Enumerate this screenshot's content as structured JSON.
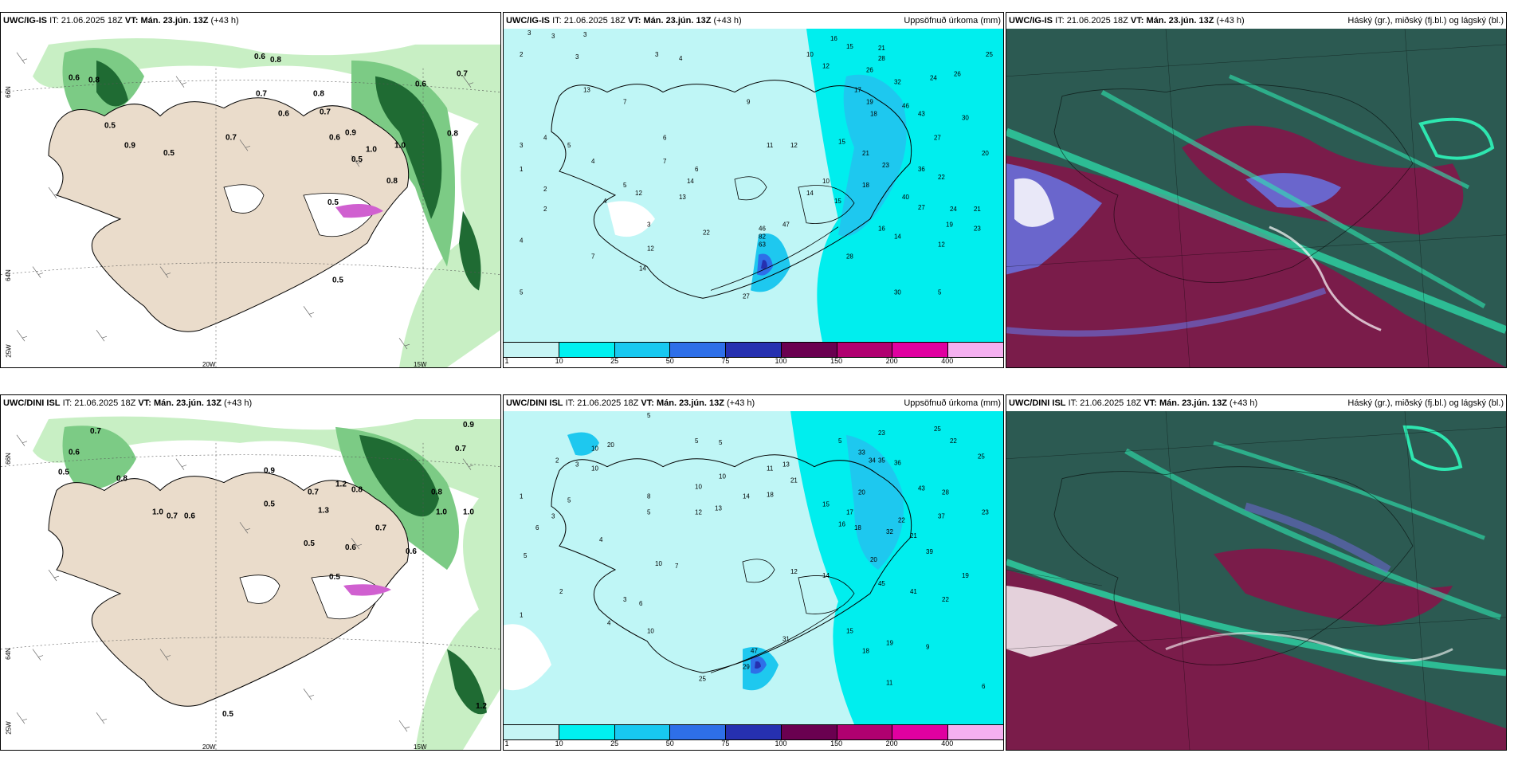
{
  "panels": [
    {
      "header_model": "UWC/IG-IS",
      "header_it_label": "IT:",
      "header_it": "21.06.2025 18Z",
      "header_vt_label": "VT:",
      "header_vt": "Mán. 23.jún. 13Z",
      "header_lead": "(+43 h)",
      "header_right": "",
      "labels": [
        "0.6",
        "0.8",
        "0.6",
        "0.8",
        "0.5",
        "0.7",
        "0.5",
        "0.9",
        "0.7",
        "0.6",
        "0.8",
        "0.7",
        "0.6",
        "0.5",
        "0.9",
        "1.0",
        "0.8",
        "0.5",
        "0.6",
        "0.7",
        "0.8",
        "1.0",
        "0.5"
      ],
      "axis": {
        "lat1": "66N",
        "lat2": "64N",
        "lon1": "20W",
        "lon2": "15W",
        "lon0": "25W"
      }
    },
    {
      "header_model": "UWC/IG-IS",
      "header_it_label": "IT:",
      "header_it": "21.06.2025 18Z",
      "header_vt_label": "VT:",
      "header_vt": "Mán. 23.jún. 13Z",
      "header_lead": "(+43 h)",
      "header_right": "Uppsöfnuð úrkoma (mm)",
      "numbers": [
        "3",
        "3",
        "3",
        "16",
        "15",
        "21",
        "25",
        "2",
        "3",
        "3",
        "4",
        "10",
        "12",
        "26",
        "28",
        "32",
        "24",
        "26",
        "13",
        "7",
        "9",
        "17",
        "19",
        "18",
        "46",
        "43",
        "30",
        "4",
        "5",
        "6",
        "11",
        "12",
        "15",
        "21",
        "27",
        "20",
        "3",
        "4",
        "7",
        "6",
        "14",
        "13",
        "10",
        "23",
        "36",
        "22",
        "1",
        "2",
        "5",
        "12",
        "14",
        "15",
        "18",
        "40",
        "27",
        "24",
        "2",
        "4",
        "3",
        "22",
        "46",
        "47",
        "21",
        "19",
        "23",
        "4",
        "7",
        "12",
        "63",
        "82",
        "16",
        "14",
        "12",
        "5",
        "14",
        "27",
        "28",
        "30",
        "5"
      ],
      "colorbar": [
        "1",
        "10",
        "25",
        "50",
        "75",
        "100",
        "150",
        "200",
        "400"
      ]
    },
    {
      "header_model": "UWC/IG-IS",
      "header_it_label": "IT:",
      "header_it": "21.06.2025 18Z",
      "header_vt_label": "VT:",
      "header_vt": "Mán. 23.jún. 13Z",
      "header_lead": "(+43 h)",
      "header_right": "Háský (gr.), miðský (fj.bl.) og lágský (bl.)"
    },
    {
      "header_model": "UWC/DINI ISL",
      "header_it_label": "IT:",
      "header_it": "21.06.2025 18Z",
      "header_vt_label": "VT:",
      "header_vt": "Mán. 23.jún. 13Z",
      "header_lead": "(+43 h)",
      "header_right": "",
      "labels": [
        "0.7",
        "0.6",
        "0.5",
        "0.8",
        "1.0",
        "0.7",
        "0.6",
        "0.9",
        "0.5",
        "0.7",
        "1.2",
        "1.3",
        "0.8",
        "0.5",
        "1.0",
        "0.6",
        "0.7",
        "0.5",
        "0.8",
        "0.7",
        "0.6",
        "1.0",
        "0.9",
        "0.5",
        "1.2"
      ],
      "axis": {
        "lat1": "66N",
        "lat2": "64N",
        "lon1": "20W",
        "lon2": "15W",
        "lon0": "25W"
      }
    },
    {
      "header_model": "UWC/DINI ISL",
      "header_it_label": "IT:",
      "header_it": "21.06.2025 18Z",
      "header_vt_label": "VT:",
      "header_vt": "Mán. 23.jún. 13Z",
      "header_lead": "(+43 h)",
      "header_right": "Uppsöfnuð úrkoma (mm)",
      "numbers": [
        "5",
        "5",
        "10",
        "20",
        "5",
        "5",
        "23",
        "25",
        "22",
        "2",
        "3",
        "10",
        "10",
        "11",
        "13",
        "21",
        "33",
        "34",
        "35",
        "36",
        "25",
        "5",
        "8",
        "10",
        "14",
        "18",
        "15",
        "20",
        "43",
        "28",
        "1",
        "3",
        "5",
        "12",
        "13",
        "17",
        "22",
        "37",
        "23",
        "6",
        "4",
        "10",
        "7",
        "21",
        "32",
        "16",
        "18",
        "20",
        "39",
        "5",
        "2",
        "3",
        "6",
        "12",
        "14",
        "19",
        "45",
        "41",
        "22",
        "1",
        "4",
        "10",
        "31",
        "47",
        "18",
        "15",
        "19",
        "9",
        "29",
        "25",
        "11",
        "6"
      ],
      "colorbar": [
        "1",
        "10",
        "25",
        "50",
        "75",
        "100",
        "150",
        "200",
        "400"
      ]
    },
    {
      "header_model": "UWC/DINI ISL",
      "header_it_label": "IT:",
      "header_it": "21.06.2025 18Z",
      "header_vt_label": "VT:",
      "header_vt": "Mán. 23.jún. 13Z",
      "header_lead": "(+43 h)",
      "header_right": "Háský (gr.), miðský (fj.bl.) og lágský (bl.)"
    }
  ],
  "colors": {
    "land": "#eadccb",
    "green_light": "#c8efc4",
    "green_mid": "#7ccb85",
    "green_dark": "#1f6b33",
    "precip_light": "#bff6f6",
    "precip_cyan": "#00eeee",
    "precip_blue": "#1ec8ef",
    "cloud_bg": "#2c5a52",
    "cloud_high": "#2ee6b0",
    "cloud_mid": "#7a1c4a",
    "cloud_low": "#6a66cc"
  },
  "colorbar_colors": [
    "#c6f4f4",
    "#00f0f0",
    "#18c8f0",
    "#2e6fe8",
    "#2630b0",
    "#6a0050",
    "#b00070",
    "#e000a0",
    "#f4b0f0"
  ]
}
